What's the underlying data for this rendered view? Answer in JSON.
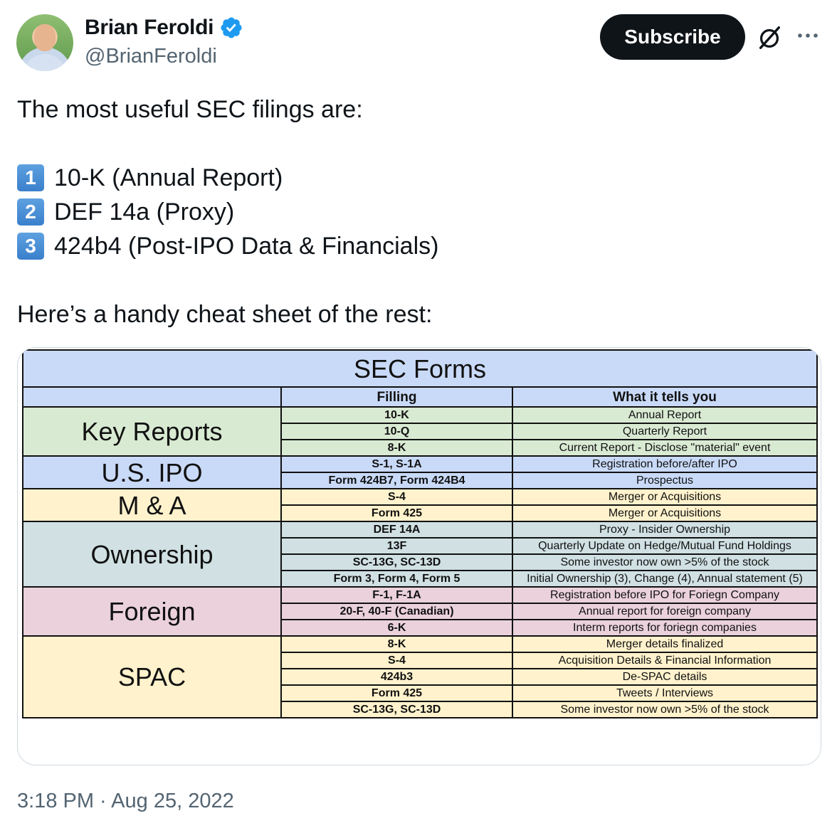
{
  "author": {
    "display_name": "Brian Feroldi",
    "handle": "@BrianFeroldi",
    "verified": true
  },
  "actions": {
    "subscribe_label": "Subscribe",
    "grok_icon": "grok-icon",
    "more_icon": "more-icon"
  },
  "tweet": {
    "intro": "The most useful SEC filings are:",
    "list": [
      {
        "key": "1",
        "text": "10-K (Annual Report)"
      },
      {
        "key": "2",
        "text": "DEF 14a (Proxy)"
      },
      {
        "key": "3",
        "text": "424b4 (Post-IPO Data & Financials)"
      }
    ],
    "outro": "Here’s a handy cheat sheet of the rest:"
  },
  "sheet": {
    "title": "SEC Forms",
    "headers": {
      "category": "",
      "filing": "Filling",
      "meaning": "What it tells you"
    },
    "groups": [
      {
        "category": "Key Reports",
        "color": "#d9ead3",
        "rows": [
          {
            "form": "10-K",
            "desc": "Annual Report"
          },
          {
            "form": "10-Q",
            "desc": "Quarterly Report"
          },
          {
            "form": "8-K",
            "desc": "Current Report - Disclose \"material\" event"
          }
        ]
      },
      {
        "category": "U.S. IPO",
        "color": "#c9daf8",
        "rows": [
          {
            "form": "S-1, S-1A",
            "desc": "Registration before/after IPO"
          },
          {
            "form": "Form 424B7, Form 424B4",
            "desc": "Prospectus"
          }
        ]
      },
      {
        "category": "M & A",
        "color": "#fff2cc",
        "rows": [
          {
            "form": "S-4",
            "desc": "Merger or Acquisitions"
          },
          {
            "form": "Form 425",
            "desc": "Merger or Acquisitions"
          }
        ]
      },
      {
        "category": "Ownership",
        "color": "#d0e0e3",
        "rows": [
          {
            "form": "DEF 14A",
            "desc": "Proxy - Insider Ownership"
          },
          {
            "form": "13F",
            "desc": "Quarterly Update on Hedge/Mutual Fund Holdings"
          },
          {
            "form": "SC-13G, SC-13D",
            "desc": "Some investor now own >5% of the stock"
          },
          {
            "form": "Form 3, Form 4, Form 5",
            "desc": "Initial Ownership (3), Change (4),  Annual statement (5)"
          }
        ]
      },
      {
        "category": "Foreign",
        "color": "#ead1dc",
        "rows": [
          {
            "form": "F-1, F-1A",
            "desc": "Registration before IPO for Foriegn Company"
          },
          {
            "form": "20-F, 40-F (Canadian)",
            "desc": "Annual report for foreign company"
          },
          {
            "form": "6-K",
            "desc": "Interm reports for foriegn companies"
          }
        ]
      },
      {
        "category": "SPAC",
        "color": "#fff2cc",
        "rows": [
          {
            "form": "8-K",
            "desc": "Merger details finalized"
          },
          {
            "form": "S-4",
            "desc": "Acquisition Details & Financial Information"
          },
          {
            "form": "424b3",
            "desc": "De-SPAC details"
          },
          {
            "form": "Form 425",
            "desc": "Tweets / Interviews"
          },
          {
            "form": "SC-13G, SC-13D",
            "desc": "Some investor now own >5% of the stock"
          }
        ]
      }
    ]
  },
  "timestamp": "3:18 PM · Aug 25, 2022"
}
